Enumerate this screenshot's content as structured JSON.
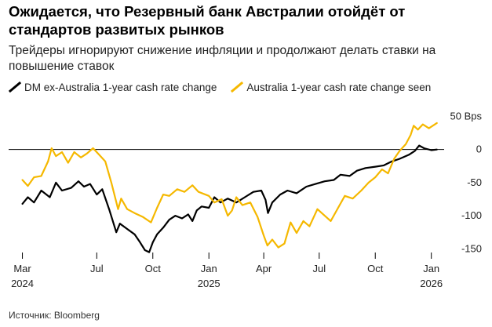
{
  "title": "Ожидается, что Резервный банк Австралии отойдёт от стандартов развитых рынков",
  "subtitle": "Трейдеры игнорируют снижение инфляции и продолжают делать ставки на повышение ставок",
  "source": "Источник: Bloomberg",
  "colors": {
    "dm": "#000000",
    "au": "#f5b800",
    "zero_line": "#000000",
    "tick": "#000000"
  },
  "chart_data": {
    "type": "line",
    "ylabel": "",
    "ylim": [
      -165,
      60
    ],
    "xlim": [
      "2024-02-28",
      "2026-01-22"
    ],
    "y_ticks": [
      {
        "value": 50,
        "label": "50 Bps"
      },
      {
        "value": 0,
        "label": "0"
      },
      {
        "value": -50,
        "label": "-50"
      },
      {
        "value": -100,
        "label": "-100"
      },
      {
        "value": -150,
        "label": "-150"
      }
    ],
    "x_ticks": [
      {
        "date": "2024-03-01",
        "label": "Mar",
        "year": "2024"
      },
      {
        "date": "2024-07-01",
        "label": "Jul",
        "year": ""
      },
      {
        "date": "2024-10-01",
        "label": "Oct",
        "year": ""
      },
      {
        "date": "2025-01-01",
        "label": "Jan",
        "year": "2025"
      },
      {
        "date": "2025-04-01",
        "label": "Apr",
        "year": ""
      },
      {
        "date": "2025-07-01",
        "label": "Jul",
        "year": ""
      },
      {
        "date": "2025-10-01",
        "label": "Oct",
        "year": ""
      },
      {
        "date": "2026-01-01",
        "label": "Jan",
        "year": "2026"
      }
    ],
    "legend_position": "top-left",
    "series": [
      {
        "name": "DM ex-Australia 1-year cash rate change",
        "color": "#000000",
        "points": [
          [
            "2024-03-01",
            -82
          ],
          [
            "2024-03-10",
            -72
          ],
          [
            "2024-03-20",
            -80
          ],
          [
            "2024-04-01",
            -62
          ],
          [
            "2024-04-15",
            -72
          ],
          [
            "2024-04-25",
            -50
          ],
          [
            "2024-05-05",
            -62
          ],
          [
            "2024-05-20",
            -58
          ],
          [
            "2024-06-01",
            -48
          ],
          [
            "2024-06-10",
            -56
          ],
          [
            "2024-06-20",
            -52
          ],
          [
            "2024-07-01",
            -68
          ],
          [
            "2024-07-10",
            -60
          ],
          [
            "2024-07-22",
            -92
          ],
          [
            "2024-08-02",
            -125
          ],
          [
            "2024-08-08",
            -112
          ],
          [
            "2024-08-20",
            -120
          ],
          [
            "2024-09-01",
            -128
          ],
          [
            "2024-09-10",
            -140
          ],
          [
            "2024-09-18",
            -152
          ],
          [
            "2024-09-25",
            -155
          ],
          [
            "2024-10-01",
            -140
          ],
          [
            "2024-10-08",
            -128
          ],
          [
            "2024-10-18",
            -118
          ],
          [
            "2024-10-28",
            -106
          ],
          [
            "2024-11-07",
            -100
          ],
          [
            "2024-11-18",
            -104
          ],
          [
            "2024-11-28",
            -98
          ],
          [
            "2024-12-05",
            -108
          ],
          [
            "2024-12-12",
            -92
          ],
          [
            "2024-12-20",
            -86
          ],
          [
            "2025-01-01",
            -88
          ],
          [
            "2025-01-10",
            -72
          ],
          [
            "2025-01-20",
            -80
          ],
          [
            "2025-02-01",
            -74
          ],
          [
            "2025-02-15",
            -80
          ],
          [
            "2025-03-01",
            -72
          ],
          [
            "2025-03-15",
            -64
          ],
          [
            "2025-03-28",
            -62
          ],
          [
            "2025-04-04",
            -76
          ],
          [
            "2025-04-08",
            -96
          ],
          [
            "2025-04-15",
            -80
          ],
          [
            "2025-04-28",
            -68
          ],
          [
            "2025-05-10",
            -62
          ],
          [
            "2025-05-25",
            -66
          ],
          [
            "2025-06-10",
            -56
          ],
          [
            "2025-06-25",
            -52
          ],
          [
            "2025-07-10",
            -48
          ],
          [
            "2025-07-25",
            -46
          ],
          [
            "2025-08-05",
            -38
          ],
          [
            "2025-08-20",
            -40
          ],
          [
            "2025-09-01",
            -32
          ],
          [
            "2025-09-15",
            -28
          ],
          [
            "2025-10-01",
            -26
          ],
          [
            "2025-10-15",
            -24
          ],
          [
            "2025-10-28",
            -18
          ],
          [
            "2025-11-10",
            -14
          ],
          [
            "2025-11-25",
            -8
          ],
          [
            "2025-12-05",
            -2
          ],
          [
            "2025-12-12",
            6
          ],
          [
            "2025-12-20",
            2
          ],
          [
            "2026-01-01",
            -1
          ],
          [
            "2026-01-10",
            0
          ]
        ]
      },
      {
        "name": "Australia 1-year cash rate change seen",
        "color": "#f5b800",
        "points": [
          [
            "2024-03-01",
            -46
          ],
          [
            "2024-03-10",
            -55
          ],
          [
            "2024-03-20",
            -42
          ],
          [
            "2024-04-01",
            -40
          ],
          [
            "2024-04-12",
            -18
          ],
          [
            "2024-04-18",
            2
          ],
          [
            "2024-04-25",
            -10
          ],
          [
            "2024-05-05",
            -4
          ],
          [
            "2024-05-15",
            -20
          ],
          [
            "2024-05-25",
            -4
          ],
          [
            "2024-06-05",
            -12
          ],
          [
            "2024-06-15",
            -6
          ],
          [
            "2024-06-25",
            2
          ],
          [
            "2024-07-05",
            -8
          ],
          [
            "2024-07-15",
            -18
          ],
          [
            "2024-07-25",
            -50
          ],
          [
            "2024-08-05",
            -90
          ],
          [
            "2024-08-10",
            -74
          ],
          [
            "2024-08-20",
            -90
          ],
          [
            "2024-09-01",
            -96
          ],
          [
            "2024-09-15",
            -102
          ],
          [
            "2024-09-28",
            -110
          ],
          [
            "2024-10-08",
            -88
          ],
          [
            "2024-10-18",
            -68
          ],
          [
            "2024-10-28",
            -70
          ],
          [
            "2024-11-10",
            -60
          ],
          [
            "2024-11-22",
            -64
          ],
          [
            "2024-12-05",
            -54
          ],
          [
            "2024-12-15",
            -64
          ],
          [
            "2025-01-01",
            -70
          ],
          [
            "2025-01-10",
            -80
          ],
          [
            "2025-01-22",
            -75
          ],
          [
            "2025-02-01",
            -100
          ],
          [
            "2025-02-08",
            -92
          ],
          [
            "2025-02-15",
            -72
          ],
          [
            "2025-02-25",
            -84
          ],
          [
            "2025-03-10",
            -80
          ],
          [
            "2025-03-22",
            -102
          ],
          [
            "2025-04-01",
            -130
          ],
          [
            "2025-04-07",
            -145
          ],
          [
            "2025-04-15",
            -136
          ],
          [
            "2025-04-25",
            -148
          ],
          [
            "2025-05-05",
            -142
          ],
          [
            "2025-05-15",
            -110
          ],
          [
            "2025-05-25",
            -126
          ],
          [
            "2025-06-05",
            -108
          ],
          [
            "2025-06-15",
            -116
          ],
          [
            "2025-06-28",
            -90
          ],
          [
            "2025-07-10",
            -100
          ],
          [
            "2025-07-20",
            -108
          ],
          [
            "2025-08-01",
            -88
          ],
          [
            "2025-08-12",
            -70
          ],
          [
            "2025-08-25",
            -74
          ],
          [
            "2025-09-08",
            -62
          ],
          [
            "2025-09-20",
            -50
          ],
          [
            "2025-10-01",
            -42
          ],
          [
            "2025-10-12",
            -30
          ],
          [
            "2025-10-22",
            -36
          ],
          [
            "2025-11-01",
            -14
          ],
          [
            "2025-11-10",
            -2
          ],
          [
            "2025-11-20",
            8
          ],
          [
            "2025-11-28",
            22
          ],
          [
            "2025-12-03",
            36
          ],
          [
            "2025-12-10",
            30
          ],
          [
            "2025-12-18",
            38
          ],
          [
            "2025-12-28",
            32
          ],
          [
            "2026-01-10",
            40
          ]
        ]
      }
    ]
  }
}
